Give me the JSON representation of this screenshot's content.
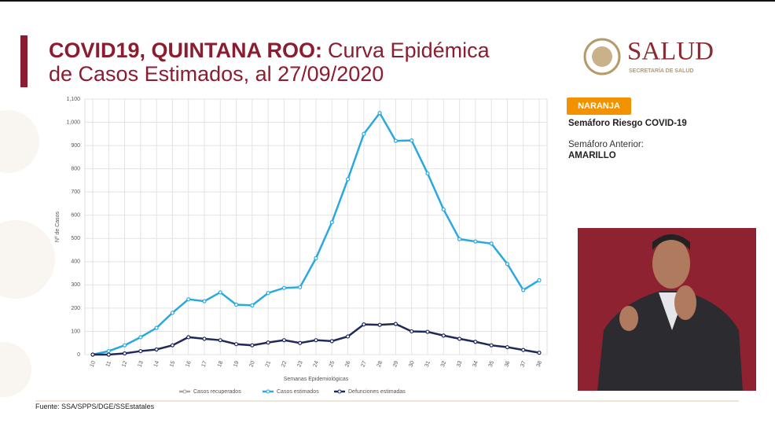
{
  "header": {
    "title_bold": "COVID19, QUINTANA ROO:",
    "title_line1": "Curva Epidémica",
    "title_line2": "de Casos Estimados, al 27/09/2020",
    "logo_title": "SALUD",
    "logo_subtitle": "SECRETARÍA DE SALUD"
  },
  "semaforo": {
    "badge": "NARANJA",
    "label": "Semáforo Riesgo COVID-19",
    "previous_label": "Semáforo Anterior:",
    "previous_value": "AMARILLO"
  },
  "footer": {
    "source": "Fuente: SSA/SPPS/DGE/SSEstatales"
  },
  "chart_data": {
    "type": "line",
    "xlabel": "Semanas Epidemiológicas",
    "ylabel": "Nº de Casos",
    "categories": [
      "10",
      "11",
      "12",
      "13",
      "14",
      "15",
      "16",
      "17",
      "18",
      "19",
      "20",
      "21",
      "22",
      "23",
      "24",
      "25",
      "26",
      "27",
      "28",
      "29",
      "30",
      "31",
      "32",
      "33",
      "34",
      "35",
      "36",
      "37",
      "38"
    ],
    "series": [
      {
        "name": "Casos recuperados",
        "color": "#a6a6a6",
        "values": [
          null,
          null,
          null,
          null,
          null,
          null,
          null,
          null,
          null,
          null,
          null,
          null,
          null,
          null,
          null,
          null,
          null,
          null,
          null,
          null,
          null,
          null,
          null,
          null,
          null,
          null,
          null,
          null,
          null
        ]
      },
      {
        "name": "Casos estimados",
        "color": "#29a9df",
        "values": [
          0,
          15,
          40,
          75,
          115,
          180,
          238,
          230,
          268,
          215,
          212,
          265,
          287,
          290,
          415,
          570,
          755,
          950,
          1040,
          920,
          922,
          780,
          625,
          497,
          487,
          478,
          390,
          278,
          320
        ]
      },
      {
        "name": "Defunciones estimadas",
        "color": "#1f2a5a",
        "values": [
          0,
          0,
          5,
          15,
          22,
          40,
          75,
          68,
          62,
          45,
          40,
          52,
          62,
          50,
          62,
          58,
          78,
          130,
          128,
          132,
          100,
          98,
          82,
          68,
          55,
          40,
          32,
          20,
          8
        ]
      }
    ],
    "ylim": [
      0,
      1100
    ],
    "yticks": [
      0,
      100,
      200,
      300,
      400,
      500,
      600,
      700,
      800,
      900,
      {
        "value": 1000,
        "label": "1,000"
      },
      {
        "value": 1100,
        "label": "1,100"
      }
    ],
    "grid": true,
    "legend": "bottom"
  }
}
